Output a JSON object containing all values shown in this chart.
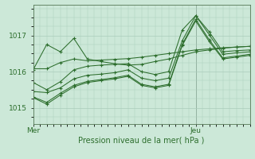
{
  "bg_color": "#cce8d8",
  "grid_color": "#aaccbb",
  "line_color": "#2d6e2d",
  "title": "Pression niveau de la mer( hPa )",
  "xlabel_mer": "Mer",
  "xlabel_jeu": "Jeu",
  "ylim": [
    1014.55,
    1017.85
  ],
  "yticks": [
    1015,
    1016,
    1017
  ],
  "xlim": [
    0,
    48
  ],
  "x_jeu": 36,
  "lines": [
    {
      "x": [
        0,
        3,
        6,
        9,
        12,
        15,
        18,
        21,
        24,
        27,
        30,
        33,
        36,
        39,
        42,
        45,
        48
      ],
      "y": [
        1016.08,
        1016.08,
        1016.25,
        1016.35,
        1016.3,
        1016.32,
        1016.34,
        1016.36,
        1016.4,
        1016.45,
        1016.5,
        1016.55,
        1016.6,
        1016.63,
        1016.66,
        1016.68,
        1016.7
      ]
    },
    {
      "x": [
        0,
        3,
        6,
        9,
        12,
        15,
        18,
        21,
        24,
        27,
        30,
        33,
        36,
        39,
        42,
        45,
        48
      ],
      "y": [
        1016.05,
        1016.75,
        1016.55,
        1016.92,
        1016.35,
        1016.28,
        1016.22,
        1016.18,
        1016.2,
        1016.28,
        1016.35,
        1016.45,
        1016.55,
        1016.6,
        1016.65,
        1016.68,
        1016.7
      ]
    },
    {
      "x": [
        0,
        3,
        6,
        9,
        12,
        15,
        18,
        21,
        24,
        27,
        30,
        33,
        36,
        39,
        42,
        45,
        48
      ],
      "y": [
        1015.7,
        1015.5,
        1015.72,
        1016.05,
        1016.15,
        1016.18,
        1016.2,
        1016.22,
        1016.0,
        1015.92,
        1016.0,
        1017.15,
        1017.55,
        1017.1,
        1016.55,
        1016.58,
        1016.6
      ]
    },
    {
      "x": [
        0,
        3,
        6,
        9,
        12,
        15,
        18,
        21,
        24,
        27,
        30,
        33,
        36,
        39,
        42,
        45,
        48
      ],
      "y": [
        1015.45,
        1015.42,
        1015.55,
        1015.8,
        1015.9,
        1015.93,
        1015.97,
        1016.05,
        1015.82,
        1015.75,
        1015.82,
        1016.85,
        1017.55,
        1017.02,
        1016.48,
        1016.52,
        1016.55
      ]
    },
    {
      "x": [
        0,
        3,
        6,
        9,
        12,
        15,
        18,
        21,
        24,
        27,
        30,
        33,
        36,
        39,
        42,
        45,
        48
      ],
      "y": [
        1015.3,
        1015.15,
        1015.4,
        1015.62,
        1015.73,
        1015.78,
        1015.83,
        1015.9,
        1015.65,
        1015.58,
        1015.65,
        1016.75,
        1017.45,
        1016.88,
        1016.38,
        1016.43,
        1016.48
      ]
    },
    {
      "x": [
        0,
        3,
        6,
        9,
        12,
        15,
        18,
        21,
        24,
        27,
        30,
        33,
        36,
        39,
        42,
        45,
        48
      ],
      "y": [
        1015.28,
        1015.1,
        1015.35,
        1015.58,
        1015.7,
        1015.75,
        1015.8,
        1015.87,
        1015.62,
        1015.55,
        1015.62,
        1016.72,
        1017.4,
        1016.83,
        1016.35,
        1016.4,
        1016.45
      ]
    }
  ]
}
